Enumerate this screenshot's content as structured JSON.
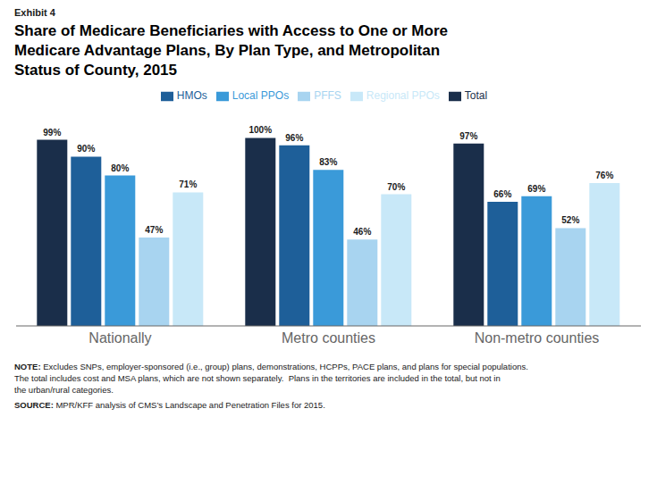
{
  "chart_data": {
    "type": "bar",
    "subtitle": "Exhibit 4",
    "title": "Share of Medicare Beneficiaries with Access to One or More\nMedicare Advantage Plans, By Plan Type, and Metropolitan\nStatus of County, 2015",
    "categories": [
      "Nationally",
      "Metro counties",
      "Non-metro counties"
    ],
    "series": [
      {
        "name": "Total",
        "color": "#1a2e4a",
        "values": [
          99,
          100,
          97
        ],
        "value_labels": [
          "99%",
          "100%",
          "97%"
        ]
      },
      {
        "name": "HMOs",
        "color": "#1e5f99",
        "values": [
          90,
          96,
          66
        ],
        "value_labels": [
          "90%",
          "96%",
          "66%"
        ]
      },
      {
        "name": "Local PPOs",
        "color": "#3a9ad9",
        "values": [
          80,
          83,
          69
        ],
        "value_labels": [
          "80%",
          "83%",
          "69%"
        ]
      },
      {
        "name": "PFFS",
        "color": "#a8d4f0",
        "values": [
          47,
          46,
          52
        ],
        "value_labels": [
          "47%",
          "46%",
          "52%"
        ]
      },
      {
        "name": "Regional PPOs",
        "color": "#c8e8f8",
        "values": [
          71,
          70,
          76
        ],
        "value_labels": [
          "71%",
          "70%",
          "76%"
        ]
      }
    ],
    "ylim": [
      0,
      115
    ],
    "grid": false,
    "legend": "top",
    "data_labels": true,
    "tick_labels": "x",
    "annotations": [
      "NOTE: Excludes SNPs, employer-sponsored (i.e., group) plans, demonstrations, HCPPs, PACE plans, and plans for special populations.\nThe total includes cost and MSA plans, which are not shown separately.  Plans in the territories are included in the total, but not in\nthe urban/rural categories.",
      "SOURCE: MPR/KFF analysis of CMS’s Landscape and Penetration Files for 2015."
    ]
  }
}
